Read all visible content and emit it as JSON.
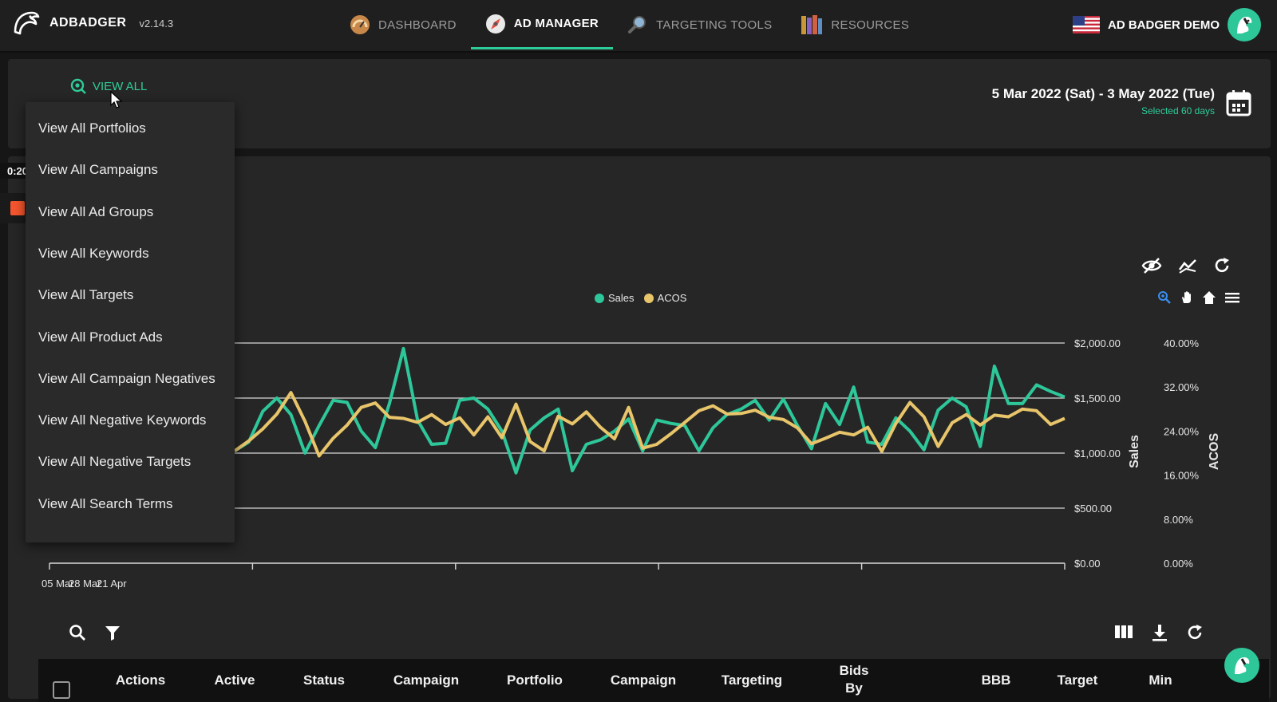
{
  "brand": {
    "name": "ADBADGER",
    "version": "v2.14.3"
  },
  "nav": [
    {
      "label": "DASHBOARD",
      "icon": "speedometer-icon"
    },
    {
      "label": "AD MANAGER",
      "icon": "compass-icon",
      "active": true
    },
    {
      "label": "TARGETING TOOLS",
      "icon": "magnifier-icon"
    },
    {
      "label": "RESOURCES",
      "icon": "books-icon"
    }
  ],
  "account": {
    "name": "AD BADGER DEMO",
    "flag": "us-flag-icon",
    "avatar": "badger-avatar-icon"
  },
  "filter": {
    "view_all_label": "VIEW ALL"
  },
  "date": {
    "range": "5 Mar 2022 (Sat) - 3 May 2022 (Tue)",
    "selected": "Selected 60 days"
  },
  "recording": {
    "time": "0:20"
  },
  "dropdown": {
    "items": [
      "View All Portfolios",
      "View All Campaigns",
      "View All Ad Groups",
      "View All Keywords",
      "View All Targets",
      "View All Product Ads",
      "View All Campaign Negatives",
      "View All Negative Keywords",
      "View All Negative Targets",
      "View All Search Terms"
    ]
  },
  "chart_data": {
    "type": "line",
    "legend_position": "top-center",
    "grid": true,
    "x_tick_labels": [
      "05 Mar",
      "28 Mar",
      "21 Apr"
    ],
    "x": [
      1,
      2,
      3,
      4,
      5,
      6,
      7,
      8,
      9,
      10,
      11,
      12,
      13,
      14,
      15,
      16,
      17,
      18,
      19,
      20,
      21,
      22,
      23,
      24,
      25,
      26,
      27,
      28,
      29,
      30,
      31,
      32,
      33,
      34,
      35,
      36,
      37,
      38,
      39,
      40,
      41,
      42,
      43,
      44,
      45,
      46,
      47,
      48,
      49,
      50,
      51,
      52,
      53,
      54,
      55,
      56,
      57,
      58,
      59,
      60
    ],
    "series": [
      {
        "name": "Sales",
        "color": "#2ec79a",
        "axis": "left",
        "values": [
          1020,
          1100,
          1380,
          1500,
          1350,
          1000,
          1250,
          1480,
          1460,
          1200,
          1050,
          1450,
          1950,
          1300,
          1080,
          1090,
          1480,
          1500,
          1400,
          1200,
          820,
          1210,
          1320,
          1400,
          840,
          1080,
          1120,
          1200,
          1310,
          1020,
          1300,
          1270,
          1250,
          1020,
          1230,
          1350,
          1400,
          1480,
          1300,
          1490,
          1250,
          1040,
          1450,
          1260,
          1600,
          1100,
          1080,
          1320,
          1200,
          1030,
          1390,
          1500,
          1420,
          1060,
          1790,
          1450,
          1450,
          1620,
          1560,
          1510
        ]
      },
      {
        "name": "ACOS",
        "color": "#e8c56a",
        "axis": "right",
        "values": [
          20.4,
          22.2,
          24.4,
          27.1,
          31.0,
          25.8,
          19.5,
          22.7,
          25.1,
          28.3,
          29.1,
          26.5,
          26.3,
          25.6,
          27.0,
          25.2,
          26.4,
          23.3,
          26.6,
          22.8,
          28.9,
          22.1,
          20.4,
          26.7,
          25.3,
          27.5,
          24.7,
          22.6,
          28.3,
          20.9,
          21.6,
          23.5,
          25.6,
          27.7,
          28.6,
          27.1,
          27.2,
          27.8,
          26.5,
          26.1,
          24.6,
          21.7,
          22.7,
          23.8,
          23.3,
          24.7,
          20.3,
          25.4,
          29.2,
          26.6,
          21.2,
          25.5,
          27.0,
          25.1,
          26.9,
          26.6,
          28.0,
          27.7,
          25.2,
          26.3
        ]
      }
    ],
    "y_left": {
      "label": "Sales",
      "range": [
        0,
        2000
      ],
      "ticks": [
        "$0.00",
        "$500.00",
        "$1,000.00",
        "$1,500.00",
        "$2,000.00"
      ]
    },
    "y_right": {
      "label": "ACOS",
      "range": [
        0,
        40
      ],
      "ticks": [
        "0.00%",
        "8.00%",
        "16.00%",
        "24.00%",
        "32.00%",
        "40.00%"
      ]
    }
  },
  "table": {
    "columns": [
      {
        "lines": [
          "Actions"
        ]
      },
      {
        "lines": [
          "Active"
        ]
      },
      {
        "lines": [
          "Status"
        ]
      },
      {
        "lines": [
          "Campaign"
        ]
      },
      {
        "lines": [
          "Portfolio"
        ]
      },
      {
        "lines": [
          "Campaign"
        ]
      },
      {
        "lines": [
          "Targeting"
        ]
      },
      {
        "lines": [
          "Bids",
          "By"
        ]
      },
      {
        "lines": [
          "BBB"
        ]
      },
      {
        "lines": [
          "Target"
        ]
      },
      {
        "lines": [
          "Min"
        ]
      }
    ]
  }
}
